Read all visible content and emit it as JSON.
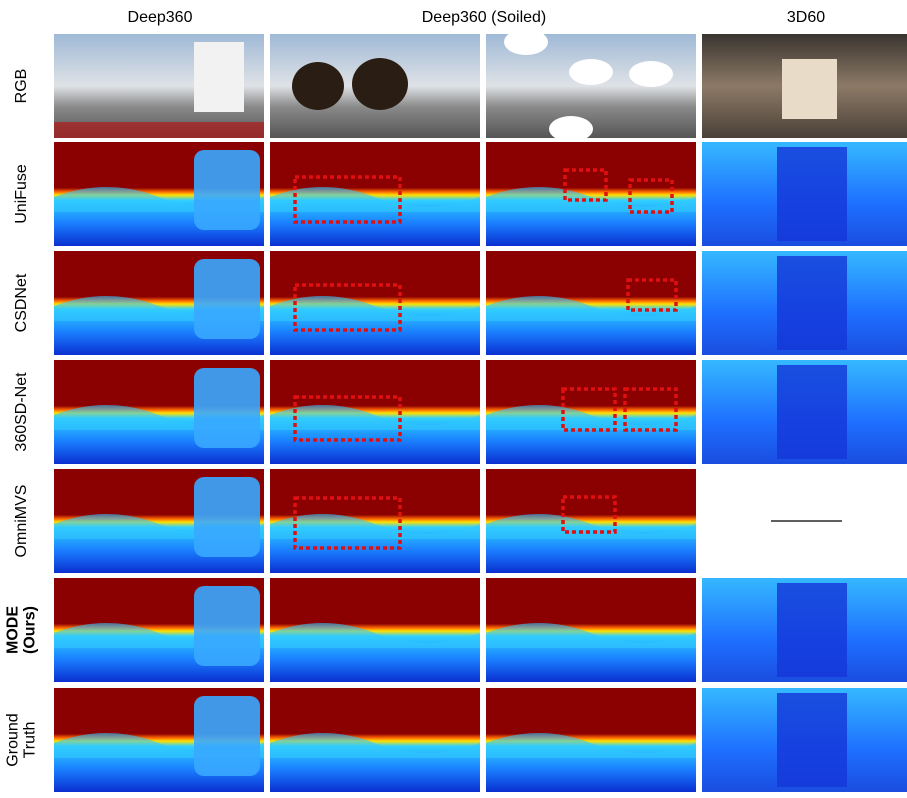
{
  "header": {
    "columns": [
      "Deep360",
      "Deep360 (Soiled)",
      "3D60"
    ]
  },
  "rows": [
    [
      "RGB"
    ],
    [
      "UniFuse"
    ],
    [
      "CSDNet"
    ],
    [
      "360SD-Net"
    ],
    [
      "OmniMVS"
    ],
    [
      "MODE",
      "(Ours)"
    ],
    [
      "Ground",
      "Truth"
    ]
  ]
}
